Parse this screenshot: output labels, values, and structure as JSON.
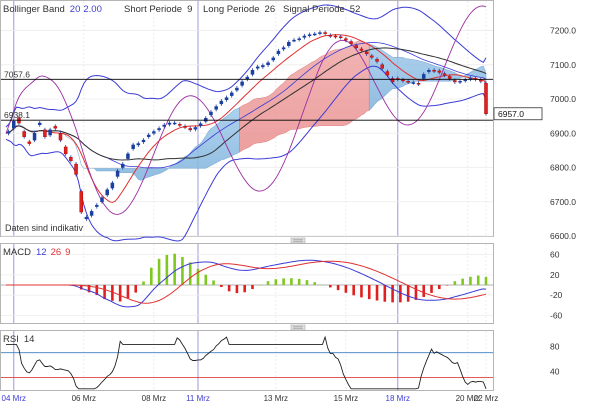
{
  "chart_data": [
    {
      "type": "candlestick",
      "panel": "price",
      "indicator_labels": {
        "bollinger": {
          "name": "Bollinger Band",
          "p1": "20",
          "p2": "2.00"
        },
        "short": {
          "name": "Short Periode",
          "value": "9"
        },
        "long": {
          "name": "Long Periode",
          "value": "26"
        },
        "signal": {
          "name": "Signal Periode",
          "value": "52"
        }
      },
      "ylim": [
        6600,
        7260
      ],
      "yticks": [
        "7200.0",
        "7100.0",
        "7000.0",
        "6900.0",
        "6800.0",
        "6700.0",
        "6600.0"
      ],
      "yticks_values": [
        7200,
        7100,
        7000,
        6900,
        6800,
        6700,
        6600
      ],
      "xticks": [
        "04 Mrz",
        "06 Mrz",
        "08 Mrz",
        "11 Mrz",
        "13 Mrz",
        "15 Mrz",
        "18 Mrz",
        "20 Mrz",
        "22 Mrz"
      ],
      "xtick_index": [
        3,
        30,
        57,
        74,
        104,
        131,
        151,
        178,
        205
      ],
      "highlighted_xticks": [
        "04 Mrz",
        "11 Mrz",
        "18 Mrz"
      ],
      "reference_lines": [
        {
          "label": "7057.6",
          "value": 7057.6,
          "color": "#000000"
        },
        {
          "label": "6938.1",
          "value": 6938.1,
          "color": "#000000"
        }
      ],
      "last_price_label": "6957.0",
      "annotation": "Daten sind indikativ",
      "series": [
        {
          "name": "close",
          "values": [
            6900,
            6905,
            6915,
            6935,
            6945,
            6930,
            6905,
            6890,
            6875,
            6870,
            6880,
            6900,
            6925,
            6930,
            6910,
            6890,
            6895,
            6910,
            6920,
            6915,
            6900,
            6880,
            6860,
            6840,
            6830,
            6820,
            6810,
            6780,
            6730,
            6670,
            6650,
            6655,
            6660,
            6672,
            6686,
            6690,
            6700,
            6712,
            6720,
            6735,
            6740,
            6755,
            6774,
            6790,
            6800,
            6810,
            6826,
            6840,
            6855,
            6866,
            6866,
            6870,
            6875,
            6880,
            6890,
            6895,
            6900,
            6905,
            6910,
            6914,
            6920,
            6924,
            6926,
            6930,
            6930,
            6930,
            6926,
            6924,
            6920,
            6918,
            6914,
            6910,
            6912,
            6917,
            6922,
            6928,
            6935,
            6944,
            6954,
            6962,
            6970,
            6978,
            6986,
            6994,
            6998,
            7004,
            7010,
            7018,
            7026,
            7032,
            7040,
            7050,
            7058,
            7064,
            7072,
            7084,
            7090,
            7094,
            7094,
            7098,
            7100,
            7106,
            7114,
            7120,
            7132,
            7140,
            7146,
            7150,
            7156,
            7166,
            7172,
            7172,
            7174,
            7176,
            7180,
            7184,
            7186,
            7188,
            7190,
            7190,
            7192,
            7194,
            7194,
            7192,
            7186,
            7184,
            7184,
            7182,
            7182,
            7180,
            7176,
            7172,
            7168,
            7162,
            7156,
            7150,
            7146,
            7142,
            7138,
            7132,
            7126,
            7122,
            7116,
            7110,
            7100,
            7090,
            7080,
            7070,
            7060,
            7050,
            7060,
            7058,
            7056,
            7054,
            7052,
            7050,
            7048,
            7048,
            7046,
            7044,
            7060,
            7072,
            7080,
            7084,
            7084,
            7082,
            7082,
            7078,
            7074,
            7070,
            7066,
            7060,
            7054,
            7050,
            7050,
            7052,
            7054,
            7056,
            7058,
            7060,
            7060,
            7058,
            7056,
            7052,
            7046,
            6957
          ],
          "note": "closing prices, every-other-sample compressed series"
        },
        {
          "name": "bollinger_upper",
          "color": "#3b3bd6"
        },
        {
          "name": "bollinger_lower",
          "color": "#3b3bd6"
        },
        {
          "name": "short_ma",
          "color": "#e03030"
        },
        {
          "name": "long_ma",
          "color": "#303030"
        },
        {
          "name": "signal",
          "color": "#9b2fa0"
        }
      ]
    },
    {
      "type": "bar",
      "panel": "macd",
      "title": "MACD",
      "params": [
        "12",
        "26",
        "9"
      ],
      "ylim": [
        -75,
        75
      ],
      "yticks": [
        "60",
        "20",
        "-20",
        "-60"
      ],
      "yticks_values": [
        60,
        20,
        -20,
        -60
      ]
    },
    {
      "type": "line",
      "panel": "rsi",
      "title": "RSI",
      "param": "14",
      "ylim": [
        10,
        100
      ],
      "yticks": [
        "80",
        "40"
      ],
      "yticks_values": [
        80,
        40
      ],
      "levels": [
        {
          "value": 70,
          "color": "#3f7fc0"
        },
        {
          "value": 30,
          "color": "#e04040"
        }
      ]
    }
  ]
}
